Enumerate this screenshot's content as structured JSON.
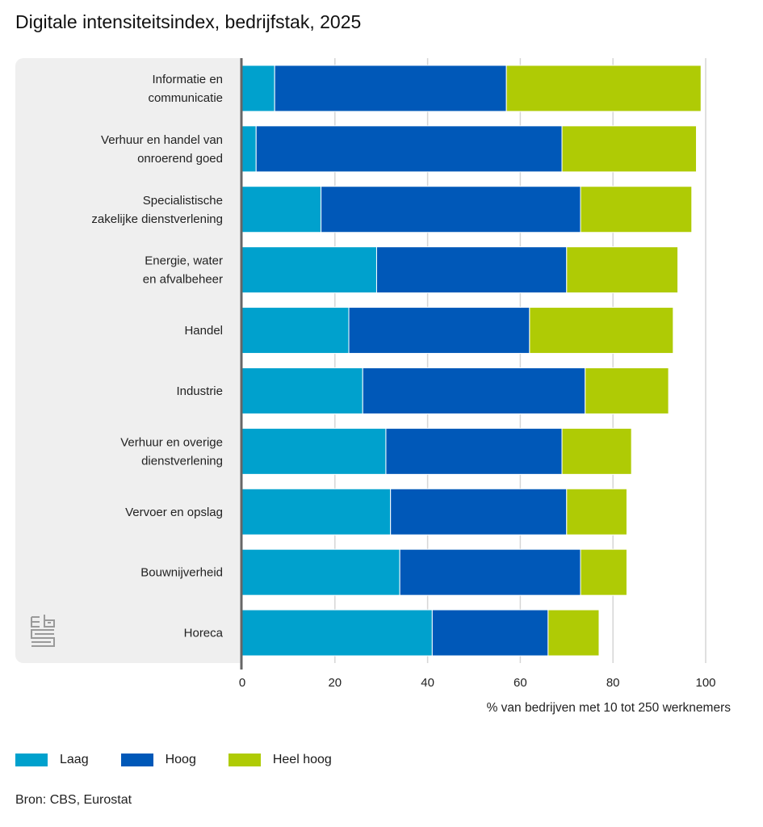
{
  "title": "Digitale intensiteitsindex, bedrijfstak, 2025",
  "source": "Bron: CBS, Eurostat",
  "logo": "cbs-logo-icon",
  "chart_data": {
    "type": "bar",
    "orientation": "horizontal",
    "stacked": true,
    "title": "Digitale intensiteitsindex, bedrijfstak, 2025",
    "xlabel": "% van bedrijven met 10 tot 250 werknemers",
    "ylabel": "",
    "xlim": [
      0,
      100
    ],
    "xticks": [
      0,
      20,
      40,
      60,
      80,
      100
    ],
    "grid": true,
    "legend_position": "bottom-left",
    "categories": [
      [
        "Informatie en",
        "communicatie"
      ],
      [
        "Verhuur en handel van",
        "onroerend goed"
      ],
      [
        "Specialistische",
        "zakelijke dienstverlening"
      ],
      [
        "Energie, water",
        "en afvalbeheer"
      ],
      [
        "Handel"
      ],
      [
        "Industrie"
      ],
      [
        "Verhuur en overige",
        "dienstverlening"
      ],
      [
        "Vervoer en opslag"
      ],
      [
        "Bouwnijverheid"
      ],
      [
        "Horeca"
      ]
    ],
    "series": [
      {
        "name": "Laag",
        "color": "#00a1cd",
        "values": [
          7,
          3,
          17,
          29,
          23,
          26,
          31,
          32,
          34,
          41
        ]
      },
      {
        "name": "Hoog",
        "color": "#0058b8",
        "values": [
          50,
          66,
          56,
          41,
          39,
          48,
          38,
          38,
          39,
          25
        ]
      },
      {
        "name": "Heel hoog",
        "color": "#afcb05",
        "values": [
          42,
          29,
          24,
          24,
          31,
          18,
          15,
          13,
          10,
          11
        ]
      }
    ]
  }
}
